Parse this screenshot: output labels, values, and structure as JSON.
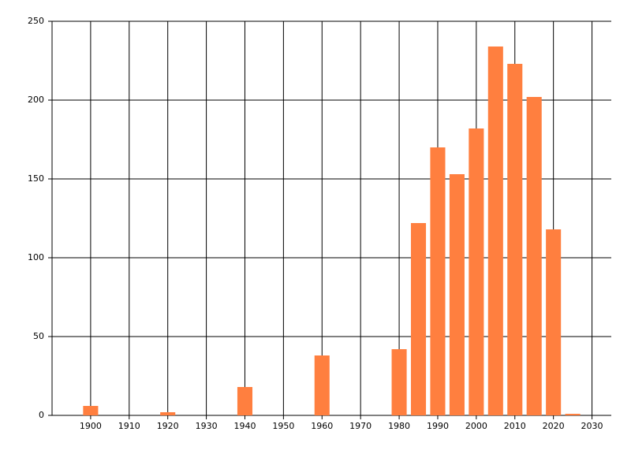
{
  "chart_data": {
    "type": "bar",
    "x": [
      1900,
      1920,
      1940,
      1960,
      1980,
      1985,
      1990,
      1995,
      2000,
      2005,
      2010,
      2015,
      2020,
      2025
    ],
    "values": [
      6,
      2,
      18,
      38,
      42,
      122,
      170,
      153,
      182,
      234,
      223,
      202,
      118,
      1
    ],
    "color": "#ff7f3f",
    "xlim": [
      1890,
      2035
    ],
    "xticks": [
      1900,
      1910,
      1920,
      1930,
      1940,
      1950,
      1960,
      1970,
      1980,
      1990,
      2000,
      2010,
      2020,
      2030
    ],
    "ylim": [
      0,
      250
    ],
    "yticks": [
      0,
      50,
      100,
      150,
      200,
      250
    ],
    "grid": true
  }
}
